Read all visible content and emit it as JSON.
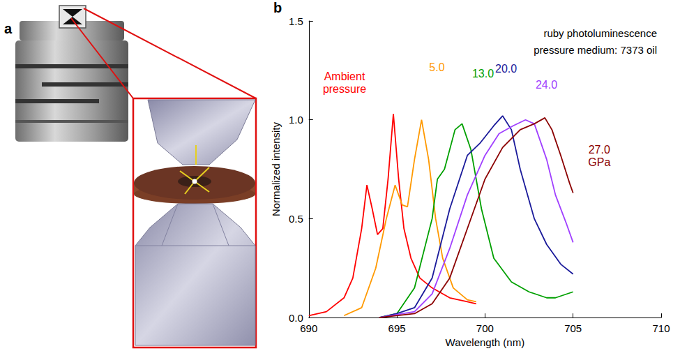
{
  "panel_labels": [
    "a",
    "b"
  ],
  "chart_data": {
    "type": "line",
    "annotations": [
      "ruby photoluminescence",
      "pressure medium: 7373 oil"
    ],
    "x_label": "Wavelength (nm)",
    "y_label": "Normalized intensity",
    "xlim": [
      690,
      710
    ],
    "xticks": [
      690,
      695,
      700,
      705,
      710
    ],
    "ylim": [
      0,
      1.5
    ],
    "yticks": [
      {
        "value": 0,
        "label": "0.0"
      },
      {
        "value": 0.5,
        "label": "0.5"
      },
      {
        "value": 1,
        "label": "1.0"
      },
      {
        "value": 1.5,
        "label": "1.5"
      }
    ],
    "grid": false,
    "series": [
      {
        "name": "Ambient pressure",
        "color": "#ff0000",
        "x": [
          690,
          691,
          692,
          692.5,
          693,
          693.3,
          693.6,
          693.9,
          694.2,
          694.5,
          694.8,
          695.1,
          695.4,
          695.8,
          696.3,
          697,
          698,
          699,
          699.5
        ],
        "values": [
          0.01,
          0.03,
          0.1,
          0.2,
          0.45,
          0.67,
          0.55,
          0.42,
          0.45,
          0.7,
          1.03,
          0.7,
          0.45,
          0.3,
          0.2,
          0.15,
          0.1,
          0.08,
          0.07
        ]
      },
      {
        "name": "5.0",
        "color": "#ff9900",
        "x": [
          692,
          693,
          693.8,
          694.4,
          694.9,
          695.3,
          695.6,
          696.0,
          696.4,
          696.8,
          697.2,
          697.6,
          698.2,
          699,
          699.5
        ],
        "values": [
          0.01,
          0.05,
          0.25,
          0.5,
          0.67,
          0.57,
          0.56,
          0.8,
          1.0,
          0.8,
          0.5,
          0.3,
          0.15,
          0.09,
          0.08
        ]
      },
      {
        "name": "13.0",
        "color": "#00a000",
        "x": [
          694,
          695,
          696,
          697,
          697.3,
          697.7,
          698.3,
          698.7,
          699.2,
          699.8,
          700.5,
          701.5,
          702.5,
          703.5,
          704,
          705
        ],
        "values": [
          0.0,
          0.02,
          0.15,
          0.5,
          0.7,
          0.75,
          0.95,
          0.98,
          0.85,
          0.55,
          0.3,
          0.18,
          0.13,
          0.1,
          0.1,
          0.13
        ]
      },
      {
        "name": "20.0",
        "color": "#1a1a9a",
        "x": [
          694,
          695,
          696,
          697,
          698,
          699,
          699.7,
          700.5,
          701,
          701.5,
          702,
          702.8,
          703.5,
          704.3,
          705
        ],
        "values": [
          0.0,
          0.02,
          0.05,
          0.2,
          0.55,
          0.82,
          0.88,
          0.97,
          1.02,
          0.95,
          0.75,
          0.5,
          0.37,
          0.27,
          0.22
        ]
      },
      {
        "name": "24.0",
        "color": "#a040ff",
        "x": [
          694,
          696,
          697,
          698,
          699,
          700,
          700.8,
          701.6,
          702.3,
          702.8,
          703.5,
          704,
          704.6,
          705
        ],
        "values": [
          0.0,
          0.03,
          0.12,
          0.35,
          0.62,
          0.82,
          0.93,
          0.97,
          1.0,
          0.98,
          0.8,
          0.62,
          0.48,
          0.38
        ]
      },
      {
        "name": "27.0 GPa",
        "color": "#8b0000",
        "x": [
          694,
          696,
          697,
          698,
          699,
          700,
          701,
          702,
          702.8,
          703.4,
          703.8,
          704.3,
          704.8,
          705
        ],
        "values": [
          0.0,
          0.02,
          0.07,
          0.2,
          0.45,
          0.7,
          0.86,
          0.95,
          0.98,
          1.01,
          0.95,
          0.82,
          0.68,
          0.63
        ]
      }
    ]
  }
}
